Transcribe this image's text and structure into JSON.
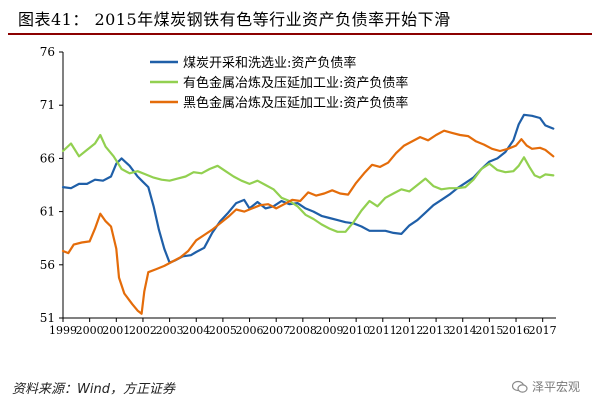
{
  "title": "图表41：   2015年煤炭钢铁有色等行业资产负债率开始下滑",
  "source": "资料来源：Wind，方正证券",
  "watermark": "泽平宏观",
  "colors": {
    "coal": "#1f5fa8",
    "nonferrous": "#92d050",
    "ferrous": "#e46c0a",
    "title_rule": "#8b0000"
  },
  "chart_data": {
    "type": "line",
    "ylim": [
      51,
      76
    ],
    "yticks": [
      51,
      56,
      61,
      66,
      71,
      76
    ],
    "xlim": [
      1999.0,
      2017.5
    ],
    "xticks": [
      1999,
      2000,
      2001,
      2002,
      2003,
      2004,
      2005,
      2006,
      2007,
      2008,
      2009,
      2010,
      2011,
      2012,
      2013,
      2014,
      2015,
      2016,
      2017
    ],
    "legend_position": "top-left",
    "series": [
      {
        "name": "煤炭开采和洗选业:资产负债率",
        "color": "#1f5fa8",
        "points": [
          [
            1999.0,
            63.3
          ],
          [
            1999.3,
            63.2
          ],
          [
            1999.6,
            63.6
          ],
          [
            1999.9,
            63.6
          ],
          [
            2000.2,
            64.0
          ],
          [
            2000.5,
            63.9
          ],
          [
            2000.8,
            64.3
          ],
          [
            2001.0,
            65.5
          ],
          [
            2001.2,
            66.0
          ],
          [
            2001.5,
            65.3
          ],
          [
            2001.8,
            64.3
          ],
          [
            2002.0,
            63.8
          ],
          [
            2002.2,
            63.3
          ],
          [
            2002.4,
            61.5
          ],
          [
            2002.6,
            59.3
          ],
          [
            2002.8,
            57.5
          ],
          [
            2003.0,
            56.2
          ],
          [
            2003.2,
            56.4
          ],
          [
            2003.5,
            56.8
          ],
          [
            2003.8,
            56.9
          ],
          [
            2004.0,
            57.2
          ],
          [
            2004.3,
            57.6
          ],
          [
            2004.6,
            59.0
          ],
          [
            2004.9,
            60.1
          ],
          [
            2005.2,
            60.9
          ],
          [
            2005.5,
            61.8
          ],
          [
            2005.8,
            62.1
          ],
          [
            2006.0,
            61.3
          ],
          [
            2006.3,
            61.9
          ],
          [
            2006.6,
            61.3
          ],
          [
            2006.9,
            61.5
          ],
          [
            2007.2,
            62.0
          ],
          [
            2007.5,
            61.7
          ],
          [
            2007.8,
            61.8
          ],
          [
            2008.1,
            61.3
          ],
          [
            2008.4,
            61.0
          ],
          [
            2008.7,
            60.6
          ],
          [
            2009.0,
            60.4
          ],
          [
            2009.3,
            60.2
          ],
          [
            2009.6,
            60.0
          ],
          [
            2009.9,
            59.9
          ],
          [
            2010.2,
            59.6
          ],
          [
            2010.5,
            59.2
          ],
          [
            2010.8,
            59.2
          ],
          [
            2011.1,
            59.2
          ],
          [
            2011.4,
            59.0
          ],
          [
            2011.7,
            58.9
          ],
          [
            2012.0,
            59.7
          ],
          [
            2012.3,
            60.2
          ],
          [
            2012.6,
            60.9
          ],
          [
            2012.9,
            61.6
          ],
          [
            2013.2,
            62.1
          ],
          [
            2013.5,
            62.6
          ],
          [
            2013.8,
            63.2
          ],
          [
            2014.1,
            63.7
          ],
          [
            2014.4,
            64.2
          ],
          [
            2014.7,
            65.0
          ],
          [
            2015.0,
            65.7
          ],
          [
            2015.3,
            66.0
          ],
          [
            2015.6,
            66.6
          ],
          [
            2015.9,
            67.7
          ],
          [
            2016.1,
            69.2
          ],
          [
            2016.3,
            70.1
          ],
          [
            2016.6,
            70.0
          ],
          [
            2016.9,
            69.8
          ],
          [
            2017.1,
            69.1
          ],
          [
            2017.4,
            68.8
          ]
        ]
      },
      {
        "name": "有色金属冶炼及压延加工业:资产负债率",
        "color": "#92d050",
        "points": [
          [
            1999.0,
            66.7
          ],
          [
            1999.3,
            67.4
          ],
          [
            1999.6,
            66.2
          ],
          [
            1999.9,
            66.8
          ],
          [
            2000.2,
            67.4
          ],
          [
            2000.4,
            68.2
          ],
          [
            2000.6,
            67.1
          ],
          [
            2000.9,
            66.2
          ],
          [
            2001.2,
            65.0
          ],
          [
            2001.5,
            64.6
          ],
          [
            2001.8,
            64.8
          ],
          [
            2002.1,
            64.5
          ],
          [
            2002.4,
            64.2
          ],
          [
            2002.7,
            64.0
          ],
          [
            2003.0,
            63.9
          ],
          [
            2003.3,
            64.1
          ],
          [
            2003.6,
            64.3
          ],
          [
            2003.9,
            64.7
          ],
          [
            2004.2,
            64.6
          ],
          [
            2004.5,
            65.0
          ],
          [
            2004.8,
            65.3
          ],
          [
            2005.1,
            64.8
          ],
          [
            2005.4,
            64.3
          ],
          [
            2005.7,
            63.9
          ],
          [
            2006.0,
            63.6
          ],
          [
            2006.3,
            63.9
          ],
          [
            2006.6,
            63.5
          ],
          [
            2006.9,
            63.1
          ],
          [
            2007.2,
            62.3
          ],
          [
            2007.5,
            62.0
          ],
          [
            2007.8,
            61.5
          ],
          [
            2008.1,
            60.7
          ],
          [
            2008.4,
            60.3
          ],
          [
            2008.7,
            59.8
          ],
          [
            2009.0,
            59.4
          ],
          [
            2009.3,
            59.1
          ],
          [
            2009.6,
            59.1
          ],
          [
            2009.9,
            60.0
          ],
          [
            2010.2,
            61.1
          ],
          [
            2010.5,
            62.0
          ],
          [
            2010.8,
            61.5
          ],
          [
            2011.1,
            62.3
          ],
          [
            2011.4,
            62.7
          ],
          [
            2011.7,
            63.1
          ],
          [
            2012.0,
            62.9
          ],
          [
            2012.3,
            63.5
          ],
          [
            2012.6,
            64.1
          ],
          [
            2012.9,
            63.4
          ],
          [
            2013.2,
            63.1
          ],
          [
            2013.5,
            63.2
          ],
          [
            2013.8,
            63.2
          ],
          [
            2014.1,
            63.3
          ],
          [
            2014.4,
            64.0
          ],
          [
            2014.7,
            65.0
          ],
          [
            2015.0,
            65.5
          ],
          [
            2015.3,
            64.9
          ],
          [
            2015.6,
            64.7
          ],
          [
            2015.9,
            64.8
          ],
          [
            2016.1,
            65.3
          ],
          [
            2016.3,
            66.1
          ],
          [
            2016.5,
            65.2
          ],
          [
            2016.7,
            64.4
          ],
          [
            2016.9,
            64.2
          ],
          [
            2017.1,
            64.5
          ],
          [
            2017.4,
            64.4
          ]
        ]
      },
      {
        "name": "黑色金属冶炼及压延加工业:资产负债率",
        "color": "#e46c0a",
        "points": [
          [
            1999.0,
            57.3
          ],
          [
            1999.2,
            57.1
          ],
          [
            1999.4,
            57.9
          ],
          [
            1999.7,
            58.1
          ],
          [
            2000.0,
            58.2
          ],
          [
            2000.2,
            59.4
          ],
          [
            2000.4,
            60.8
          ],
          [
            2000.6,
            60.1
          ],
          [
            2000.8,
            59.6
          ],
          [
            2001.0,
            57.5
          ],
          [
            2001.1,
            54.8
          ],
          [
            2001.3,
            53.3
          ],
          [
            2001.6,
            52.3
          ],
          [
            2001.8,
            51.7
          ],
          [
            2001.95,
            51.4
          ],
          [
            2002.05,
            53.5
          ],
          [
            2002.2,
            55.3
          ],
          [
            2002.5,
            55.6
          ],
          [
            2002.8,
            55.9
          ],
          [
            2003.1,
            56.3
          ],
          [
            2003.4,
            56.7
          ],
          [
            2003.7,
            57.3
          ],
          [
            2004.0,
            58.3
          ],
          [
            2004.3,
            58.8
          ],
          [
            2004.6,
            59.3
          ],
          [
            2004.9,
            59.9
          ],
          [
            2005.2,
            60.5
          ],
          [
            2005.5,
            61.2
          ],
          [
            2005.8,
            61.0
          ],
          [
            2006.1,
            61.3
          ],
          [
            2006.4,
            61.6
          ],
          [
            2006.7,
            61.7
          ],
          [
            2007.0,
            61.3
          ],
          [
            2007.3,
            61.7
          ],
          [
            2007.6,
            62.1
          ],
          [
            2007.9,
            62.0
          ],
          [
            2008.2,
            62.8
          ],
          [
            2008.5,
            62.5
          ],
          [
            2008.8,
            62.7
          ],
          [
            2009.1,
            63.0
          ],
          [
            2009.4,
            62.7
          ],
          [
            2009.7,
            62.6
          ],
          [
            2010.0,
            63.7
          ],
          [
            2010.3,
            64.6
          ],
          [
            2010.6,
            65.4
          ],
          [
            2010.9,
            65.2
          ],
          [
            2011.2,
            65.6
          ],
          [
            2011.5,
            66.5
          ],
          [
            2011.8,
            67.2
          ],
          [
            2012.1,
            67.6
          ],
          [
            2012.4,
            68.0
          ],
          [
            2012.7,
            67.7
          ],
          [
            2013.0,
            68.2
          ],
          [
            2013.3,
            68.6
          ],
          [
            2013.6,
            68.4
          ],
          [
            2013.9,
            68.2
          ],
          [
            2014.2,
            68.1
          ],
          [
            2014.5,
            67.6
          ],
          [
            2014.8,
            67.3
          ],
          [
            2015.1,
            66.9
          ],
          [
            2015.4,
            66.7
          ],
          [
            2015.7,
            66.9
          ],
          [
            2016.0,
            67.2
          ],
          [
            2016.2,
            67.8
          ],
          [
            2016.4,
            67.2
          ],
          [
            2016.6,
            66.9
          ],
          [
            2016.9,
            67.0
          ],
          [
            2017.1,
            66.8
          ],
          [
            2017.4,
            66.2
          ]
        ]
      }
    ]
  }
}
